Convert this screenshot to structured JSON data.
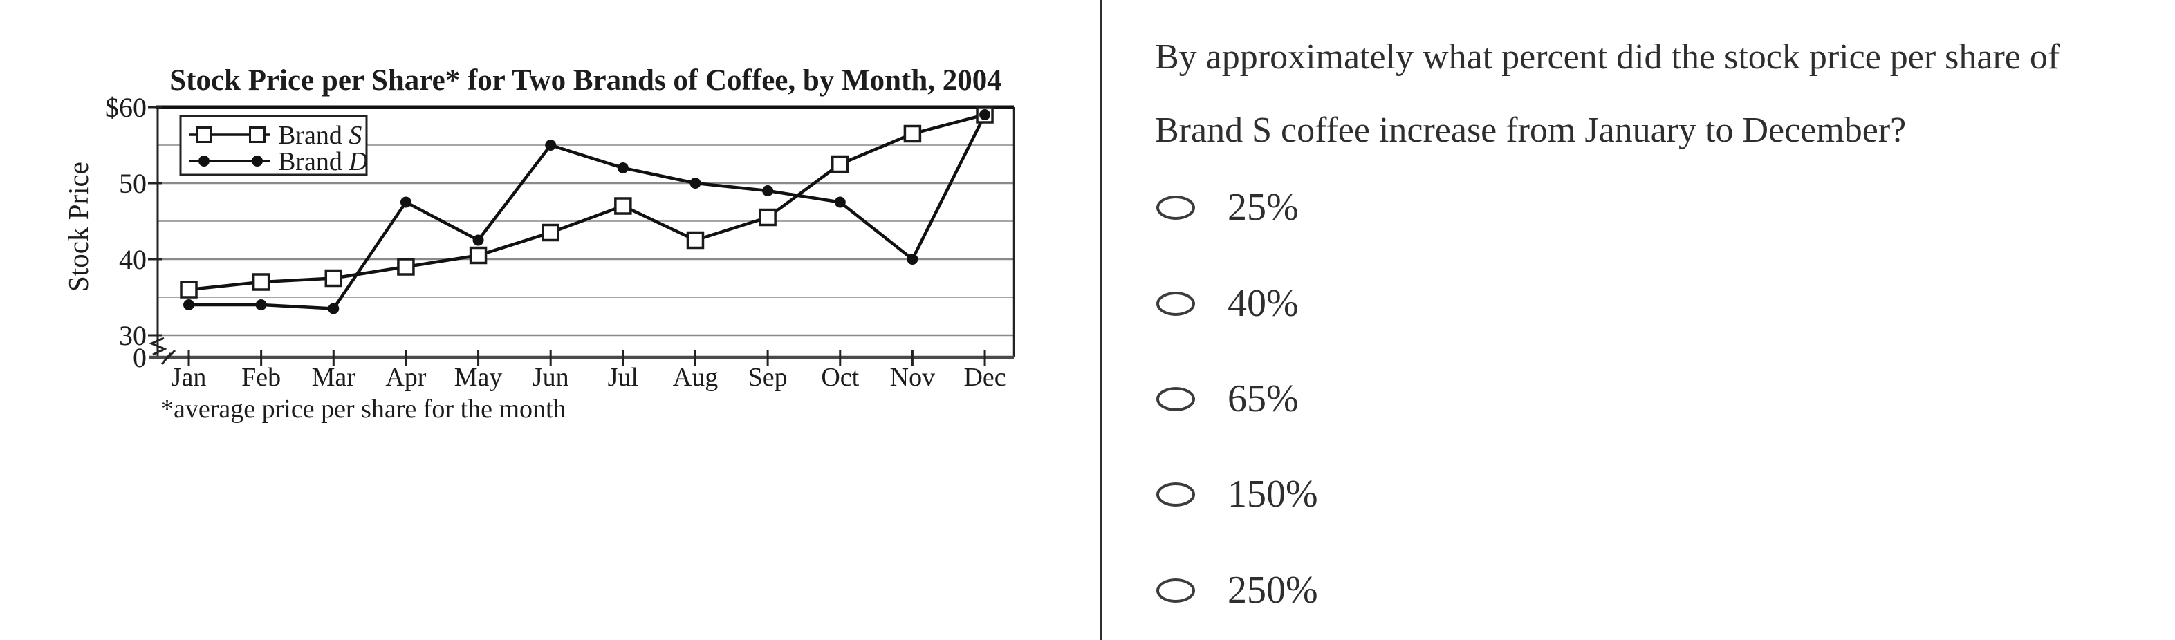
{
  "colors": {
    "background": "#ffffff",
    "text": "#2e2e2e",
    "chart_ink": "#1c1c1c",
    "series_line": "#111111",
    "gridline_minor": "#a6a6a6",
    "gridline_major": "#8a8a8a",
    "divider": "#2f2f2f"
  },
  "chart_data": {
    "type": "line",
    "title": "Stock Price per Share* for Two Brands of Coffee, by Month, 2004",
    "ylabel": "Stock Price",
    "footnote": "*average price per share for the month",
    "categories": [
      "Jan",
      "Feb",
      "Mar",
      "Apr",
      "May",
      "Jun",
      "Jul",
      "Aug",
      "Sep",
      "Oct",
      "Nov",
      "Dec"
    ],
    "y_axis": {
      "ticks": [
        {
          "value": 60,
          "label": "$60"
        },
        {
          "value": 50,
          "label": "50"
        },
        {
          "value": 40,
          "label": "40"
        },
        {
          "value": 30,
          "label": "30"
        },
        {
          "value": 0,
          "label": "0"
        }
      ],
      "minor_gridlines": [
        55,
        45,
        35
      ],
      "display_range": [
        30,
        60
      ],
      "axis_break_between": [
        0,
        30
      ]
    },
    "grid": "horizontal",
    "legend_position": "top-left",
    "series": [
      {
        "name": "Brand S",
        "name_prefix": "Brand",
        "name_letter": "S",
        "marker": "open-square",
        "values": [
          36,
          37,
          37.5,
          39,
          40.5,
          43.5,
          47,
          42.5,
          45.5,
          52.5,
          56.5,
          59
        ]
      },
      {
        "name": "Brand D",
        "name_prefix": "Brand",
        "name_letter": "D",
        "marker": "filled-circle",
        "values": [
          34,
          34,
          33.5,
          47.5,
          42.5,
          55,
          52,
          50,
          49,
          47.5,
          40,
          59
        ]
      }
    ]
  },
  "question": {
    "lines": [
      "By approximately what percent did the stock price per share of",
      "Brand S coffee increase from January to December?"
    ],
    "options": [
      "25%",
      "40%",
      "65%",
      "150%",
      "250%"
    ]
  }
}
